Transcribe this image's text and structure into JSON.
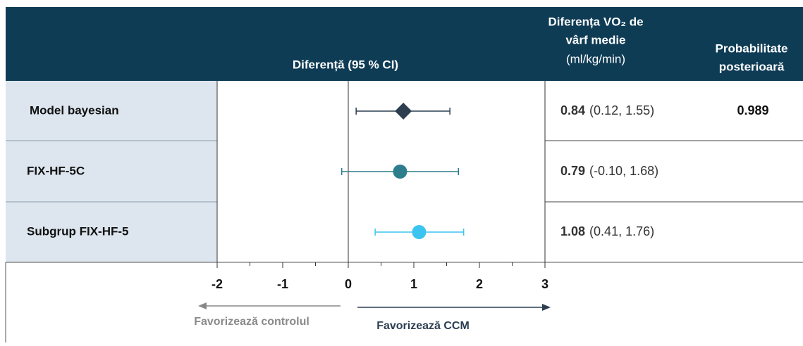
{
  "chart_data": {
    "type": "forest",
    "header": {
      "diff_title": "Diferență (95 % CI)",
      "mean_title": [
        "Diferența VO₂ de",
        "vârf medie",
        "(ml/kg/min)"
      ],
      "posterior_title": [
        "Probabilitate",
        "posterioară"
      ]
    },
    "categories": [
      "Model bayesian",
      "FIX-HF-5C",
      "Subgrup FIX-HF-5"
    ],
    "values": [
      0.84,
      0.79,
      1.08
    ],
    "lower": [
      0.12,
      -0.1,
      0.41
    ],
    "upper": [
      1.55,
      1.68,
      1.76
    ],
    "ci_labels": [
      "(0.12, 1.55)",
      "(-0.10, 1.68)",
      "(0.41, 1.76)"
    ],
    "posterior": [
      0.989,
      null,
      null
    ],
    "colors": [
      "#2c3e50",
      "#2e7d8c",
      "#3cc4f0"
    ],
    "markers": [
      "diamond",
      "circle",
      "circle"
    ],
    "xlim": [
      -2,
      3
    ],
    "xticks": [
      -2,
      -1,
      0,
      1,
      2,
      3
    ],
    "xminor_ticks": [
      -1.5,
      -0.5,
      0.5,
      1.5,
      2.5
    ],
    "annotations": {
      "left": "Favorizează controlul",
      "right": "Favorizează CCM"
    }
  }
}
